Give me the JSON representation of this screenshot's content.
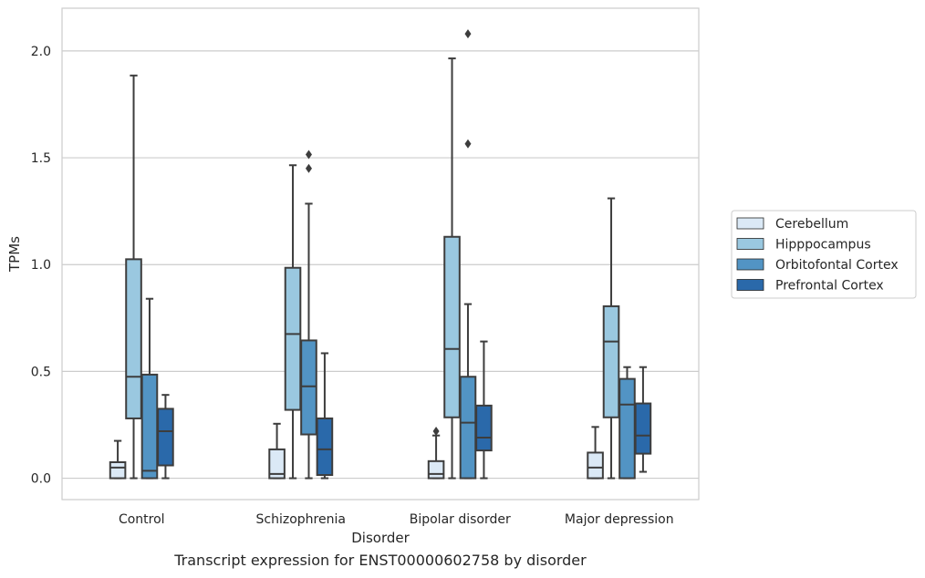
{
  "caption": "Transcript expression for ENST00000602758 by disorder",
  "chart_data": {
    "type": "boxplot",
    "xlabel": "Disorder",
    "ylabel": "TPMs",
    "ylim": [
      -0.1,
      2.2
    ],
    "yticks": [
      0.0,
      0.5,
      1.0,
      1.5,
      2.0
    ],
    "ytick_labels": [
      "0.0",
      "0.5",
      "1.0",
      "1.5",
      "2.0"
    ],
    "grid": "horizontal",
    "legend_position": "right",
    "categories": [
      "Control",
      "Schizophrenia",
      "Bipolar disorder",
      "Major depression"
    ],
    "series": [
      {
        "name": "Cerebellum",
        "color": "#dbe9f6",
        "boxes": [
          {
            "whislo": 0.0,
            "q1": 0.0,
            "med": 0.05,
            "q3": 0.075,
            "whishi": 0.175,
            "fliers": []
          },
          {
            "whislo": 0.0,
            "q1": 0.0,
            "med": 0.02,
            "q3": 0.135,
            "whishi": 0.255,
            "fliers": []
          },
          {
            "whislo": 0.0,
            "q1": 0.0,
            "med": 0.02,
            "q3": 0.08,
            "whishi": 0.2,
            "fliers": [
              0.22
            ]
          },
          {
            "whislo": 0.0,
            "q1": 0.0,
            "med": 0.05,
            "q3": 0.12,
            "whishi": 0.24,
            "fliers": []
          }
        ]
      },
      {
        "name": "Hipppocampus",
        "color": "#9ac8e0",
        "boxes": [
          {
            "whislo": 0.0,
            "q1": 0.28,
            "med": 0.475,
            "q3": 1.025,
            "whishi": 1.885,
            "fliers": []
          },
          {
            "whislo": 0.0,
            "q1": 0.32,
            "med": 0.675,
            "q3": 0.985,
            "whishi": 1.465,
            "fliers": []
          },
          {
            "whislo": 0.0,
            "q1": 0.285,
            "med": 0.605,
            "q3": 1.13,
            "whishi": 1.965,
            "fliers": []
          },
          {
            "whislo": 0.0,
            "q1": 0.285,
            "med": 0.64,
            "q3": 0.805,
            "whishi": 1.31,
            "fliers": []
          }
        ]
      },
      {
        "name": "Orbitofontal Cortex",
        "color": "#5294c4",
        "boxes": [
          {
            "whislo": 0.0,
            "q1": 0.0,
            "med": 0.035,
            "q3": 0.485,
            "whishi": 0.84,
            "fliers": []
          },
          {
            "whislo": 0.0,
            "q1": 0.205,
            "med": 0.43,
            "q3": 0.645,
            "whishi": 1.285,
            "fliers": [
              1.45,
              1.515
            ]
          },
          {
            "whislo": 0.0,
            "q1": 0.0,
            "med": 0.26,
            "q3": 0.475,
            "whishi": 0.815,
            "fliers": [
              1.565,
              2.08
            ]
          },
          {
            "whislo": 0.0,
            "q1": 0.0,
            "med": 0.345,
            "q3": 0.465,
            "whishi": 0.52,
            "fliers": []
          }
        ]
      },
      {
        "name": "Prefrontal Cortex",
        "color": "#2a69aa",
        "boxes": [
          {
            "whislo": 0.0,
            "q1": 0.06,
            "med": 0.22,
            "q3": 0.325,
            "whishi": 0.39,
            "fliers": []
          },
          {
            "whislo": 0.0,
            "q1": 0.015,
            "med": 0.135,
            "q3": 0.28,
            "whishi": 0.585,
            "fliers": []
          },
          {
            "whislo": 0.0,
            "q1": 0.13,
            "med": 0.19,
            "q3": 0.34,
            "whishi": 0.64,
            "fliers": []
          },
          {
            "whislo": 0.03,
            "q1": 0.115,
            "med": 0.2,
            "q3": 0.35,
            "whishi": 0.52,
            "fliers": []
          }
        ]
      }
    ]
  }
}
